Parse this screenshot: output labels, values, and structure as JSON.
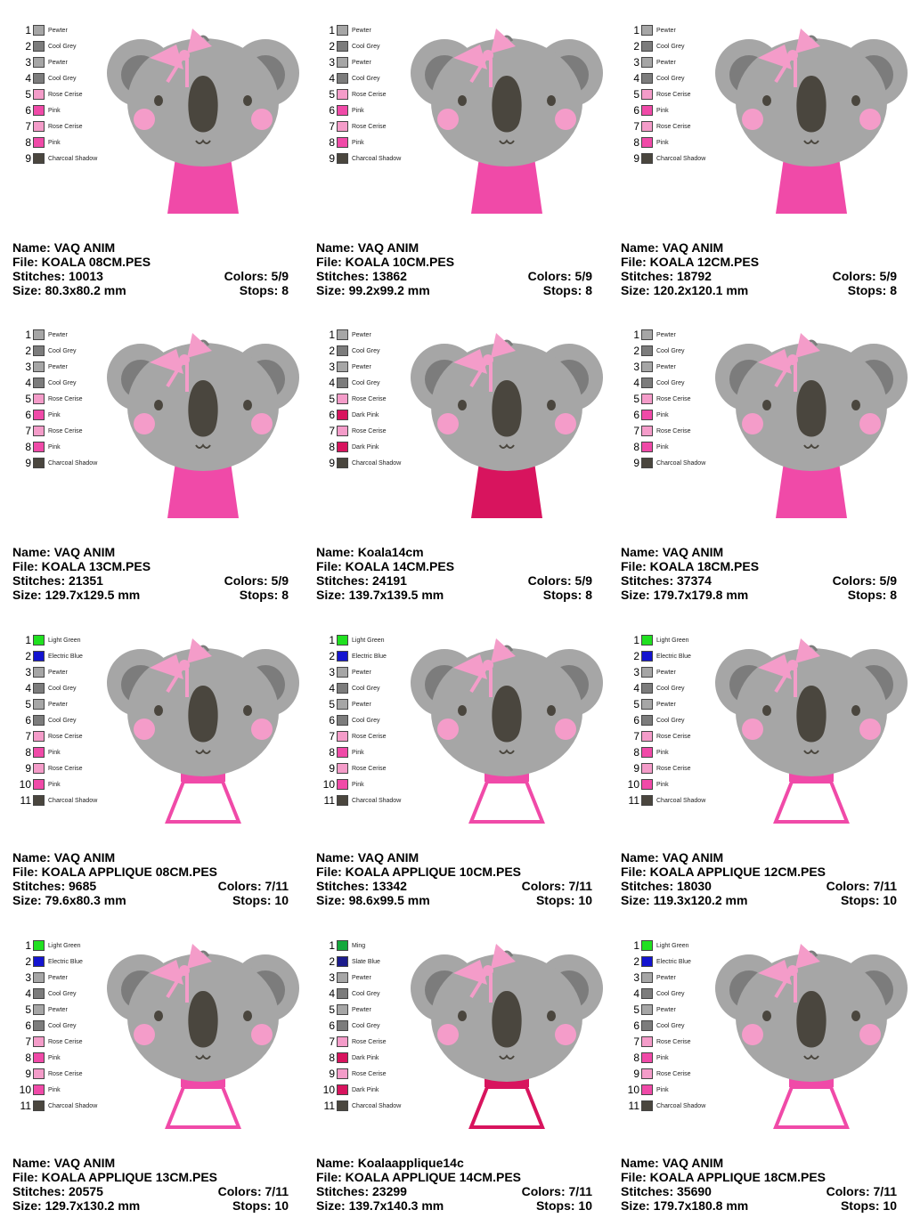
{
  "palette": {
    "Pewter": "#a6a6a6",
    "Cool Grey": "#7c7c7c",
    "Rose Cerise": "#f49cc9",
    "Pink": "#f04aa8",
    "Dark Pink": "#d8145e",
    "Charcoal Shadow": "#4a463e",
    "Light Green": "#20e020",
    "Electric Blue": "#1414d0",
    "Ming": "#14a83c",
    "Slate Blue": "#1c1c8c"
  },
  "labels": {
    "name": "Name:",
    "file": "File:",
    "stitches": "Stitches:",
    "size": "Size:",
    "colors": "Colors:",
    "stops": "Stops:"
  },
  "cards": [
    {
      "name": "VAQ ANIM",
      "file": "KOALA 08CM.PES",
      "stitches": "10013",
      "colors": "5/9",
      "size": "80.3x80.2 mm",
      "stops": "8",
      "applique": false,
      "sweater": "#f04aa8",
      "threads": [
        "Pewter",
        "Cool Grey",
        "Pewter",
        "Cool Grey",
        "Rose Cerise",
        "Pink",
        "Rose Cerise",
        "Pink",
        "Charcoal Shadow"
      ]
    },
    {
      "name": "VAQ ANIM",
      "file": "KOALA 10CM.PES",
      "stitches": "13862",
      "colors": "5/9",
      "size": "99.2x99.2 mm",
      "stops": "8",
      "applique": false,
      "sweater": "#f04aa8",
      "threads": [
        "Pewter",
        "Cool Grey",
        "Pewter",
        "Cool Grey",
        "Rose Cerise",
        "Pink",
        "Rose Cerise",
        "Pink",
        "Charcoal Shadow"
      ]
    },
    {
      "name": "VAQ ANIM",
      "file": "KOALA 12CM.PES",
      "stitches": "18792",
      "colors": "5/9",
      "size": "120.2x120.1 mm",
      "stops": "8",
      "applique": false,
      "sweater": "#f04aa8",
      "threads": [
        "Pewter",
        "Cool Grey",
        "Pewter",
        "Cool Grey",
        "Rose Cerise",
        "Pink",
        "Rose Cerise",
        "Pink",
        "Charcoal Shadow"
      ]
    },
    {
      "name": "VAQ ANIM",
      "file": "KOALA 13CM.PES",
      "stitches": "21351",
      "colors": "5/9",
      "size": "129.7x129.5 mm",
      "stops": "8",
      "applique": false,
      "sweater": "#f04aa8",
      "threads": [
        "Pewter",
        "Cool Grey",
        "Pewter",
        "Cool Grey",
        "Rose Cerise",
        "Pink",
        "Rose Cerise",
        "Pink",
        "Charcoal Shadow"
      ]
    },
    {
      "name": "Koala14cm",
      "file": "KOALA 14CM.PES",
      "stitches": "24191",
      "colors": "5/9",
      "size": "139.7x139.5 mm",
      "stops": "8",
      "applique": false,
      "sweater": "#d8145e",
      "threads": [
        "Pewter",
        "Cool Grey",
        "Pewter",
        "Cool Grey",
        "Rose Cerise",
        "Dark Pink",
        "Rose Cerise",
        "Dark Pink",
        "Charcoal Shadow"
      ]
    },
    {
      "name": "VAQ ANIM",
      "file": "KOALA 18CM.PES",
      "stitches": "37374",
      "colors": "5/9",
      "size": "179.7x179.8 mm",
      "stops": "8",
      "applique": false,
      "sweater": "#f04aa8",
      "threads": [
        "Pewter",
        "Cool Grey",
        "Pewter",
        "Cool Grey",
        "Rose Cerise",
        "Pink",
        "Rose Cerise",
        "Pink",
        "Charcoal Shadow"
      ]
    },
    {
      "name": "VAQ ANIM",
      "file": "KOALA APPLIQUE 08CM.PES",
      "stitches": "9685",
      "colors": "7/11",
      "size": "79.6x80.3 mm",
      "stops": "10",
      "applique": true,
      "sweater": "#f04aa8",
      "threads": [
        "Light Green",
        "Electric Blue",
        "Pewter",
        "Cool Grey",
        "Pewter",
        "Cool Grey",
        "Rose Cerise",
        "Pink",
        "Rose Cerise",
        "Pink",
        "Charcoal Shadow"
      ]
    },
    {
      "name": "VAQ ANIM",
      "file": "KOALA APPLIQUE 10CM.PES",
      "stitches": "13342",
      "colors": "7/11",
      "size": "98.6x99.5 mm",
      "stops": "10",
      "applique": true,
      "sweater": "#f04aa8",
      "threads": [
        "Light Green",
        "Electric Blue",
        "Pewter",
        "Cool Grey",
        "Pewter",
        "Cool Grey",
        "Rose Cerise",
        "Pink",
        "Rose Cerise",
        "Pink",
        "Charcoal Shadow"
      ]
    },
    {
      "name": "VAQ ANIM",
      "file": "KOALA APPLIQUE 12CM.PES",
      "stitches": "18030",
      "colors": "7/11",
      "size": "119.3x120.2 mm",
      "stops": "10",
      "applique": true,
      "sweater": "#f04aa8",
      "threads": [
        "Light Green",
        "Electric Blue",
        "Pewter",
        "Cool Grey",
        "Pewter",
        "Cool Grey",
        "Rose Cerise",
        "Pink",
        "Rose Cerise",
        "Pink",
        "Charcoal Shadow"
      ]
    },
    {
      "name": "VAQ ANIM",
      "file": "KOALA APPLIQUE 13CM.PES",
      "stitches": "20575",
      "colors": "7/11",
      "size": "129.7x130.2 mm",
      "stops": "10",
      "applique": true,
      "sweater": "#f04aa8",
      "threads": [
        "Light Green",
        "Electric Blue",
        "Pewter",
        "Cool Grey",
        "Pewter",
        "Cool Grey",
        "Rose Cerise",
        "Pink",
        "Rose Cerise",
        "Pink",
        "Charcoal Shadow"
      ]
    },
    {
      "name": "Koalaapplique14c",
      "file": "KOALA APPLIQUE 14CM.PES",
      "stitches": "23299",
      "colors": "7/11",
      "size": "139.7x140.3 mm",
      "stops": "10",
      "applique": true,
      "sweater": "#d8145e",
      "threads": [
        "Ming",
        "Slate Blue",
        "Pewter",
        "Cool Grey",
        "Pewter",
        "Cool Grey",
        "Rose Cerise",
        "Dark Pink",
        "Rose Cerise",
        "Dark Pink",
        "Charcoal Shadow"
      ]
    },
    {
      "name": "VAQ ANIM",
      "file": "KOALA APPLIQUE 18CM.PES",
      "stitches": "35690",
      "colors": "7/11",
      "size": "179.7x180.8 mm",
      "stops": "10",
      "applique": true,
      "sweater": "#f04aa8",
      "threads": [
        "Light Green",
        "Electric Blue",
        "Pewter",
        "Cool Grey",
        "Pewter",
        "Cool Grey",
        "Rose Cerise",
        "Pink",
        "Rose Cerise",
        "Pink",
        "Charcoal Shadow"
      ]
    }
  ]
}
